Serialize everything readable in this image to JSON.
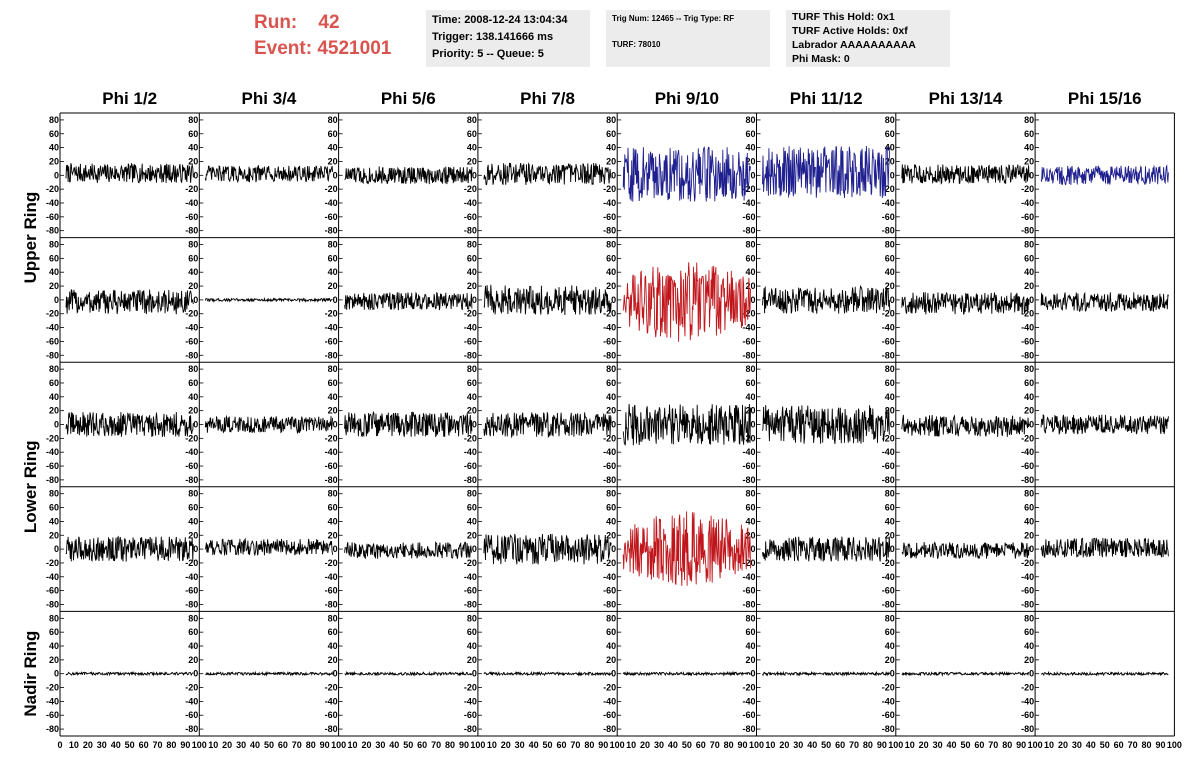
{
  "header": {
    "run_label": "Run:",
    "run_value": "42",
    "event_label": "Event:",
    "event_value": "4521001"
  },
  "info_box_1": {
    "time": "Time: 2008-12-24 13:04:34",
    "trigger": "Trigger: 138.141666 ms",
    "priority": "Priority: 5 -- Queue: 5"
  },
  "info_box_2": {
    "trig": "Trig Num: 12465 -- Trig Type: RF",
    "turf": "TURF: 78010"
  },
  "info_box_3": {
    "hold": "TURF This Hold: 0x1",
    "active": "TURF Active Holds: 0xf",
    "labrador": "Labrador AAAAAAAAAA",
    "phimask": "Phi Mask: 0"
  },
  "chart_data": {
    "type": "line",
    "columns": [
      "Phi 1/2",
      "Phi 3/4",
      "Phi 5/6",
      "Phi 7/8",
      "Phi 9/10",
      "Phi 11/12",
      "Phi 13/14",
      "Phi 15/16"
    ],
    "ring_labels": [
      "Upper Ring",
      "Lower Ring",
      "Nadir Ring"
    ],
    "ylim": [
      -90,
      90
    ],
    "y_ticks": [
      -80,
      -60,
      -40,
      -20,
      0,
      20,
      40,
      60,
      80
    ],
    "xlim": [
      0,
      100
    ],
    "x_ticks": [
      0,
      10,
      20,
      30,
      40,
      50,
      60,
      70,
      80,
      90,
      100
    ],
    "colors": {
      "black": "#000000",
      "blue": "#1f1f8f",
      "red": "#c0161b"
    },
    "panels": [
      {
        "row": 0,
        "col": 0,
        "color": "black",
        "amp": 14,
        "offset": 3
      },
      {
        "row": 0,
        "col": 1,
        "color": "black",
        "amp": 12,
        "offset": 2
      },
      {
        "row": 0,
        "col": 2,
        "color": "black",
        "amp": 13,
        "offset": 0
      },
      {
        "row": 0,
        "col": 3,
        "color": "black",
        "amp": 16,
        "offset": 2
      },
      {
        "row": 0,
        "col": 4,
        "color": "blue",
        "amp": 40,
        "offset": 2
      },
      {
        "row": 0,
        "col": 5,
        "color": "blue",
        "amp": 38,
        "offset": 5
      },
      {
        "row": 0,
        "col": 6,
        "color": "black",
        "amp": 14,
        "offset": 2
      },
      {
        "row": 0,
        "col": 7,
        "color": "blue",
        "amp": 14,
        "offset": 0
      },
      {
        "row": 1,
        "col": 0,
        "color": "black",
        "amp": 18,
        "offset": -3
      },
      {
        "row": 1,
        "col": 1,
        "color": "black",
        "amp": 2,
        "offset": 0
      },
      {
        "row": 1,
        "col": 2,
        "color": "black",
        "amp": 13,
        "offset": -2
      },
      {
        "row": 1,
        "col": 3,
        "color": "black",
        "amp": 22,
        "offset": 0
      },
      {
        "row": 1,
        "col": 4,
        "color": "red",
        "amp": 60,
        "offset": -2,
        "envelope": true
      },
      {
        "row": 1,
        "col": 5,
        "color": "black",
        "amp": 20,
        "offset": 0
      },
      {
        "row": 1,
        "col": 6,
        "color": "black",
        "amp": 16,
        "offset": -5
      },
      {
        "row": 1,
        "col": 7,
        "color": "black",
        "amp": 14,
        "offset": -3
      },
      {
        "row": 2,
        "col": 0,
        "color": "black",
        "amp": 18,
        "offset": 0
      },
      {
        "row": 2,
        "col": 1,
        "color": "black",
        "amp": 12,
        "offset": 0
      },
      {
        "row": 2,
        "col": 2,
        "color": "black",
        "amp": 18,
        "offset": 0
      },
      {
        "row": 2,
        "col": 3,
        "color": "black",
        "amp": 18,
        "offset": 0
      },
      {
        "row": 2,
        "col": 4,
        "color": "black",
        "amp": 30,
        "offset": 0
      },
      {
        "row": 2,
        "col": 5,
        "color": "black",
        "amp": 28,
        "offset": 0
      },
      {
        "row": 2,
        "col": 6,
        "color": "black",
        "amp": 16,
        "offset": -2
      },
      {
        "row": 2,
        "col": 7,
        "color": "black",
        "amp": 14,
        "offset": 0
      },
      {
        "row": 3,
        "col": 0,
        "color": "black",
        "amp": 18,
        "offset": 0
      },
      {
        "row": 3,
        "col": 1,
        "color": "black",
        "amp": 12,
        "offset": 3
      },
      {
        "row": 3,
        "col": 2,
        "color": "black",
        "amp": 12,
        "offset": -2
      },
      {
        "row": 3,
        "col": 3,
        "color": "black",
        "amp": 22,
        "offset": 0
      },
      {
        "row": 3,
        "col": 4,
        "color": "red",
        "amp": 55,
        "offset": 0,
        "envelope": true
      },
      {
        "row": 3,
        "col": 5,
        "color": "black",
        "amp": 18,
        "offset": 0
      },
      {
        "row": 3,
        "col": 6,
        "color": "black",
        "amp": 12,
        "offset": -2
      },
      {
        "row": 3,
        "col": 7,
        "color": "black",
        "amp": 14,
        "offset": 2
      },
      {
        "row": 4,
        "col": 0,
        "color": "black",
        "amp": 2,
        "offset": 0
      },
      {
        "row": 4,
        "col": 1,
        "color": "black",
        "amp": 2,
        "offset": 0
      },
      {
        "row": 4,
        "col": 2,
        "color": "black",
        "amp": 2,
        "offset": 0
      },
      {
        "row": 4,
        "col": 3,
        "color": "black",
        "amp": 2,
        "offset": 0
      },
      {
        "row": 4,
        "col": 4,
        "color": "black",
        "amp": 2,
        "offset": 0
      },
      {
        "row": 4,
        "col": 5,
        "color": "black",
        "amp": 2,
        "offset": 0
      },
      {
        "row": 4,
        "col": 6,
        "color": "black",
        "amp": 2,
        "offset": 0
      },
      {
        "row": 4,
        "col": 7,
        "color": "black",
        "amp": 2,
        "offset": 0
      }
    ]
  }
}
